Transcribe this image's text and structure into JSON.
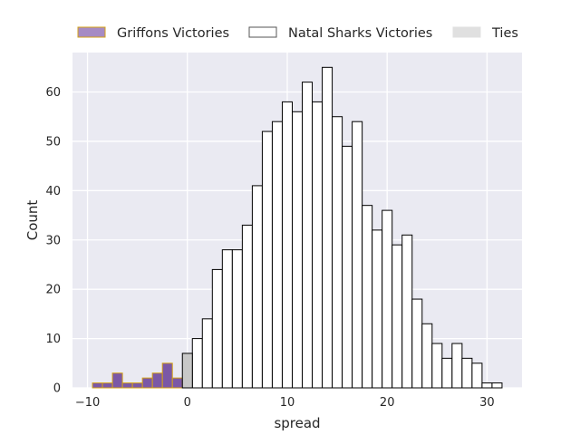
{
  "chart_data": {
    "type": "bar",
    "subtype": "histogram",
    "xlabel": "spread",
    "ylabel": "Count",
    "xlim": [
      -11.5,
      33.5
    ],
    "ylim": [
      0,
      68
    ],
    "xticks": [
      -10,
      0,
      10,
      20,
      30
    ],
    "yticks": [
      0,
      10,
      20,
      30,
      40,
      50,
      60
    ],
    "bin_width": 1,
    "grid": true,
    "legend_position": "top",
    "series": [
      {
        "name": "Griffons Victories",
        "fill": "#7b58a6",
        "edge": "#d4a017",
        "bins": [
          {
            "x": -9,
            "count": 1
          },
          {
            "x": -8,
            "count": 1
          },
          {
            "x": -7,
            "count": 3
          },
          {
            "x": -6,
            "count": 1
          },
          {
            "x": -5,
            "count": 1
          },
          {
            "x": -4,
            "count": 2
          },
          {
            "x": -3,
            "count": 3
          },
          {
            "x": -2,
            "count": 5
          },
          {
            "x": -1,
            "count": 2
          }
        ]
      },
      {
        "name": "Natal Sharks Victories",
        "fill": "#ffffff",
        "edge": "#000000",
        "bins": [
          {
            "x": 1,
            "count": 10
          },
          {
            "x": 2,
            "count": 14
          },
          {
            "x": 3,
            "count": 24
          },
          {
            "x": 4,
            "count": 28
          },
          {
            "x": 5,
            "count": 28
          },
          {
            "x": 6,
            "count": 33
          },
          {
            "x": 7,
            "count": 41
          },
          {
            "x": 8,
            "count": 52
          },
          {
            "x": 9,
            "count": 54
          },
          {
            "x": 10,
            "count": 58
          },
          {
            "x": 11,
            "count": 56
          },
          {
            "x": 12,
            "count": 62
          },
          {
            "x": 13,
            "count": 58
          },
          {
            "x": 14,
            "count": 65
          },
          {
            "x": 15,
            "count": 55
          },
          {
            "x": 16,
            "count": 49
          },
          {
            "x": 17,
            "count": 54
          },
          {
            "x": 18,
            "count": 37
          },
          {
            "x": 19,
            "count": 32
          },
          {
            "x": 20,
            "count": 36
          },
          {
            "x": 21,
            "count": 29
          },
          {
            "x": 22,
            "count": 31
          },
          {
            "x": 23,
            "count": 18
          },
          {
            "x": 24,
            "count": 13
          },
          {
            "x": 25,
            "count": 9
          },
          {
            "x": 26,
            "count": 6
          },
          {
            "x": 27,
            "count": 9
          },
          {
            "x": 28,
            "count": 6
          },
          {
            "x": 29,
            "count": 5
          },
          {
            "x": 30,
            "count": 1
          },
          {
            "x": 31,
            "count": 1
          }
        ]
      },
      {
        "name": "Ties",
        "fill": "#c8c8c8",
        "edge": "#000000",
        "bins": [
          {
            "x": 0,
            "count": 7
          }
        ]
      }
    ]
  }
}
